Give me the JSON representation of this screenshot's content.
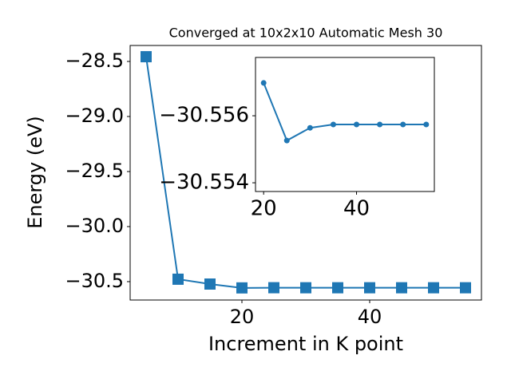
{
  "chart_data": [
    {
      "type": "line",
      "title": "Converged at 10x2x10 Automatic Mesh 30",
      "x_label": "Increment in K point",
      "y_label": "Energy (eV)",
      "x": [
        5,
        10,
        15,
        20,
        25,
        30,
        35,
        40,
        45,
        50,
        55
      ],
      "series": [
        {
          "color": "#1f77b4",
          "marker": "square",
          "values": [
            -28.457,
            -30.478,
            -30.522,
            -30.557,
            -30.5553,
            -30.5557,
            -30.5557,
            -30.5557,
            -30.5557,
            -30.5557,
            -30.5557
          ]
        }
      ],
      "xlim": [
        2.5,
        57.5
      ],
      "xticks": [
        20,
        40
      ],
      "ylim": [
        -30.667,
        -28.355
      ],
      "yticks": [
        {
          "value": -30.5,
          "label": "−30.5"
        },
        {
          "value": -30.0,
          "label": "−30.0"
        },
        {
          "value": -29.5,
          "label": "−29.5"
        },
        {
          "value": -29.0,
          "label": "−29.0"
        },
        {
          "value": -28.5,
          "label": "−28.5"
        }
      ]
    },
    {
      "type": "line",
      "x": [
        20,
        25,
        30,
        35,
        40,
        45,
        50,
        55
      ],
      "series": [
        {
          "color": "#1f77b4",
          "marker": "circle",
          "values": [
            -30.55698,
            -30.55526,
            -30.55564,
            -30.55574,
            -30.55574,
            -30.55574,
            -30.55574,
            -30.55574
          ]
        }
      ],
      "xlim": [
        18.25,
        56.75
      ],
      "xticks": [
        20,
        40
      ],
      "ylim": [
        -30.55374,
        -30.55774
      ],
      "yticks": [
        {
          "value": -30.554,
          "label": "−30.554"
        },
        {
          "value": -30.556,
          "label": "−30.556"
        }
      ]
    }
  ]
}
